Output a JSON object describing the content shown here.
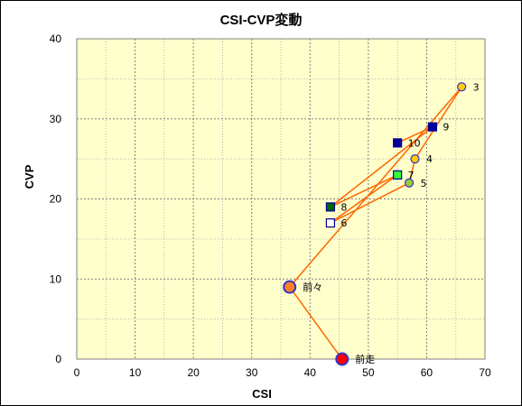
{
  "chart_data": {
    "type": "scatter",
    "title": "CSI-CVP変動",
    "xlabel": "CSI",
    "ylabel": "CVP",
    "xlim": [
      0,
      70
    ],
    "ylim": [
      0,
      40
    ],
    "xticks": [
      0,
      10,
      20,
      30,
      40,
      50,
      60,
      70
    ],
    "yticks": [
      0,
      10,
      20,
      30,
      40
    ],
    "grid": true,
    "plot_background": "#ffffcc",
    "line_color": "#ff6600",
    "path_order": [
      "前走",
      "前々",
      "3",
      "4",
      "5",
      "6",
      "7",
      "8",
      "9",
      "10"
    ],
    "points": [
      {
        "label": "前走",
        "x": 45.5,
        "y": 0,
        "marker": "circle",
        "fill": "#ff0000",
        "stroke": "#3333cc",
        "size": "large"
      },
      {
        "label": "前々",
        "x": 36.5,
        "y": 9,
        "marker": "circle",
        "fill": "#ff7f27",
        "stroke": "#3333cc",
        "size": "large"
      },
      {
        "label": "3",
        "x": 66,
        "y": 34,
        "marker": "circle",
        "fill": "#ffcc00",
        "stroke": "#3333cc",
        "size": "small"
      },
      {
        "label": "4",
        "x": 58,
        "y": 25,
        "marker": "circle",
        "fill": "#ffcc00",
        "stroke": "#3333cc",
        "size": "small"
      },
      {
        "label": "5",
        "x": 57,
        "y": 22,
        "marker": "circle",
        "fill": "#99cc33",
        "stroke": "#3333cc",
        "size": "small"
      },
      {
        "label": "6",
        "x": 43.5,
        "y": 17,
        "marker": "square",
        "fill": "#ffffff",
        "stroke": "#000099",
        "size": "small"
      },
      {
        "label": "7",
        "x": 55,
        "y": 23,
        "marker": "square",
        "fill": "#33ff33",
        "stroke": "#000099",
        "size": "small"
      },
      {
        "label": "8",
        "x": 43.5,
        "y": 19,
        "marker": "square",
        "fill": "#006600",
        "stroke": "#000099",
        "size": "small"
      },
      {
        "label": "9",
        "x": 61,
        "y": 29,
        "marker": "square",
        "fill": "#000099",
        "stroke": "#000099",
        "size": "small"
      },
      {
        "label": "10",
        "x": 55,
        "y": 27,
        "marker": "square",
        "fill": "#000099",
        "stroke": "#000099",
        "size": "small"
      }
    ]
  }
}
